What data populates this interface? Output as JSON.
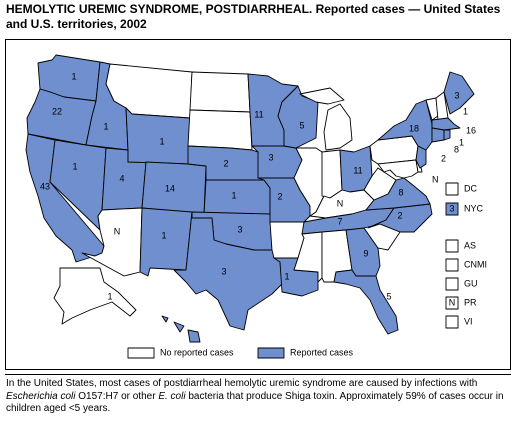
{
  "title": "HEMOLYTIC UREMIC SYNDROME, POSTDIARRHEAL. Reported cases — United States and U.S. territories, 2002",
  "colors": {
    "reported": "#6f8fcf",
    "not_reported": "#ffffff",
    "border": "#000000"
  },
  "legend": {
    "no_reported": "No reported cases",
    "reported": "Reported cases"
  },
  "state_labels": {
    "WA": "1",
    "OR": "22",
    "CA": "43",
    "ID": "1",
    "NV": "1",
    "UT": "4",
    "AZ": "N",
    "WY": "1",
    "CO": "14",
    "NM": "1",
    "MN": "11",
    "SD": "",
    "NE": "2",
    "KS": "1",
    "OK": "3",
    "TX": "3",
    "IA": "3",
    "MO": "2",
    "AR": "",
    "LA": "1",
    "WI": "5",
    "IL": "",
    "IN": "",
    "OH": "11",
    "KY": "N",
    "TN": "7",
    "MS": "",
    "AL": "",
    "GA": "9",
    "FL": "5",
    "SC": "",
    "NC": "2",
    "VA": "8",
    "WV": "",
    "PA": "",
    "NY": "18",
    "ME": "3",
    "NH": "1",
    "MA": "16",
    "RI": "1",
    "CT": "8",
    "NJ": "2",
    "MD": "N",
    "DE": "",
    "AK": "1",
    "HI": "",
    "MI": "",
    "ND": "",
    "MT": "",
    "VT": ""
  },
  "territories": [
    {
      "code": "DC",
      "value": ""
    },
    {
      "code": "NYC",
      "value": "3"
    },
    {
      "code": "AS",
      "value": ""
    },
    {
      "code": "CNMI",
      "value": ""
    },
    {
      "code": "GU",
      "value": ""
    },
    {
      "code": "PR",
      "value": "N"
    },
    {
      "code": "VI",
      "value": ""
    }
  ],
  "footnote": {
    "part1": "In the United States, most cases of postdiarrheal hemolytic uremic syndrome are caused by infections with ",
    "organism1": "Escherichia coli",
    "part2": " O157:H7 or other ",
    "organism2": "E. coli",
    "part3": " bacteria that produce Shiga toxin. Approximately 59% of cases occur in children aged <5 years."
  }
}
